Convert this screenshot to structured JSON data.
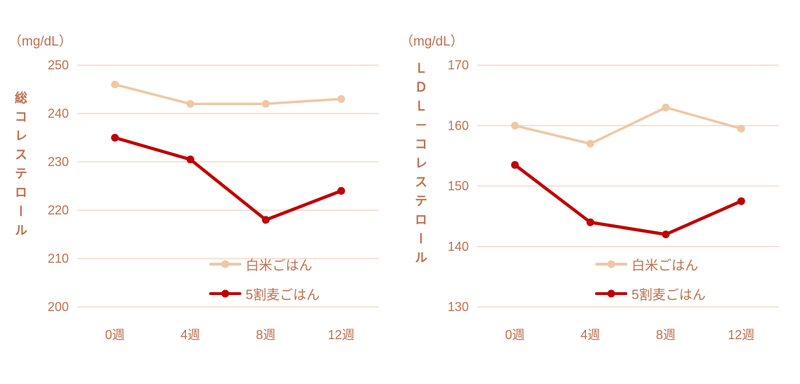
{
  "colors": {
    "text": "#C0714F",
    "gridline": "#F5D8CC",
    "white_rice_series": "#EEC8A4",
    "barley_rice_series": "#C00000"
  },
  "chart_data": [
    {
      "type": "line",
      "title": "総コレステロール",
      "unit": "（mg/dL）",
      "categories": [
        "0週",
        "4週",
        "8週",
        "12週"
      ],
      "series": [
        {
          "name": "白米ごはん",
          "color": "#EEC8A4",
          "values": [
            246,
            242,
            242,
            243
          ]
        },
        {
          "name": "5割麦ごはん",
          "color": "#C00000",
          "values": [
            235,
            230.5,
            218,
            224
          ]
        }
      ],
      "ylim": [
        200,
        250
      ],
      "ytick_step": 10,
      "grid": true,
      "legend_position": "inside-bottom-right"
    },
    {
      "type": "line",
      "title": "ＬＤＬ－コレステロール",
      "unit": "（mg/dL）",
      "categories": [
        "0週",
        "4週",
        "8週",
        "12週"
      ],
      "series": [
        {
          "name": "白米ごはん",
          "color": "#EEC8A4",
          "values": [
            160,
            157,
            163,
            159.5
          ]
        },
        {
          "name": "5割麦ごはん",
          "color": "#C00000",
          "values": [
            153.5,
            144,
            142,
            147.5
          ]
        }
      ],
      "ylim": [
        130,
        170
      ],
      "ytick_step": 10,
      "grid": true,
      "legend_position": "inside-bottom-right"
    }
  ]
}
